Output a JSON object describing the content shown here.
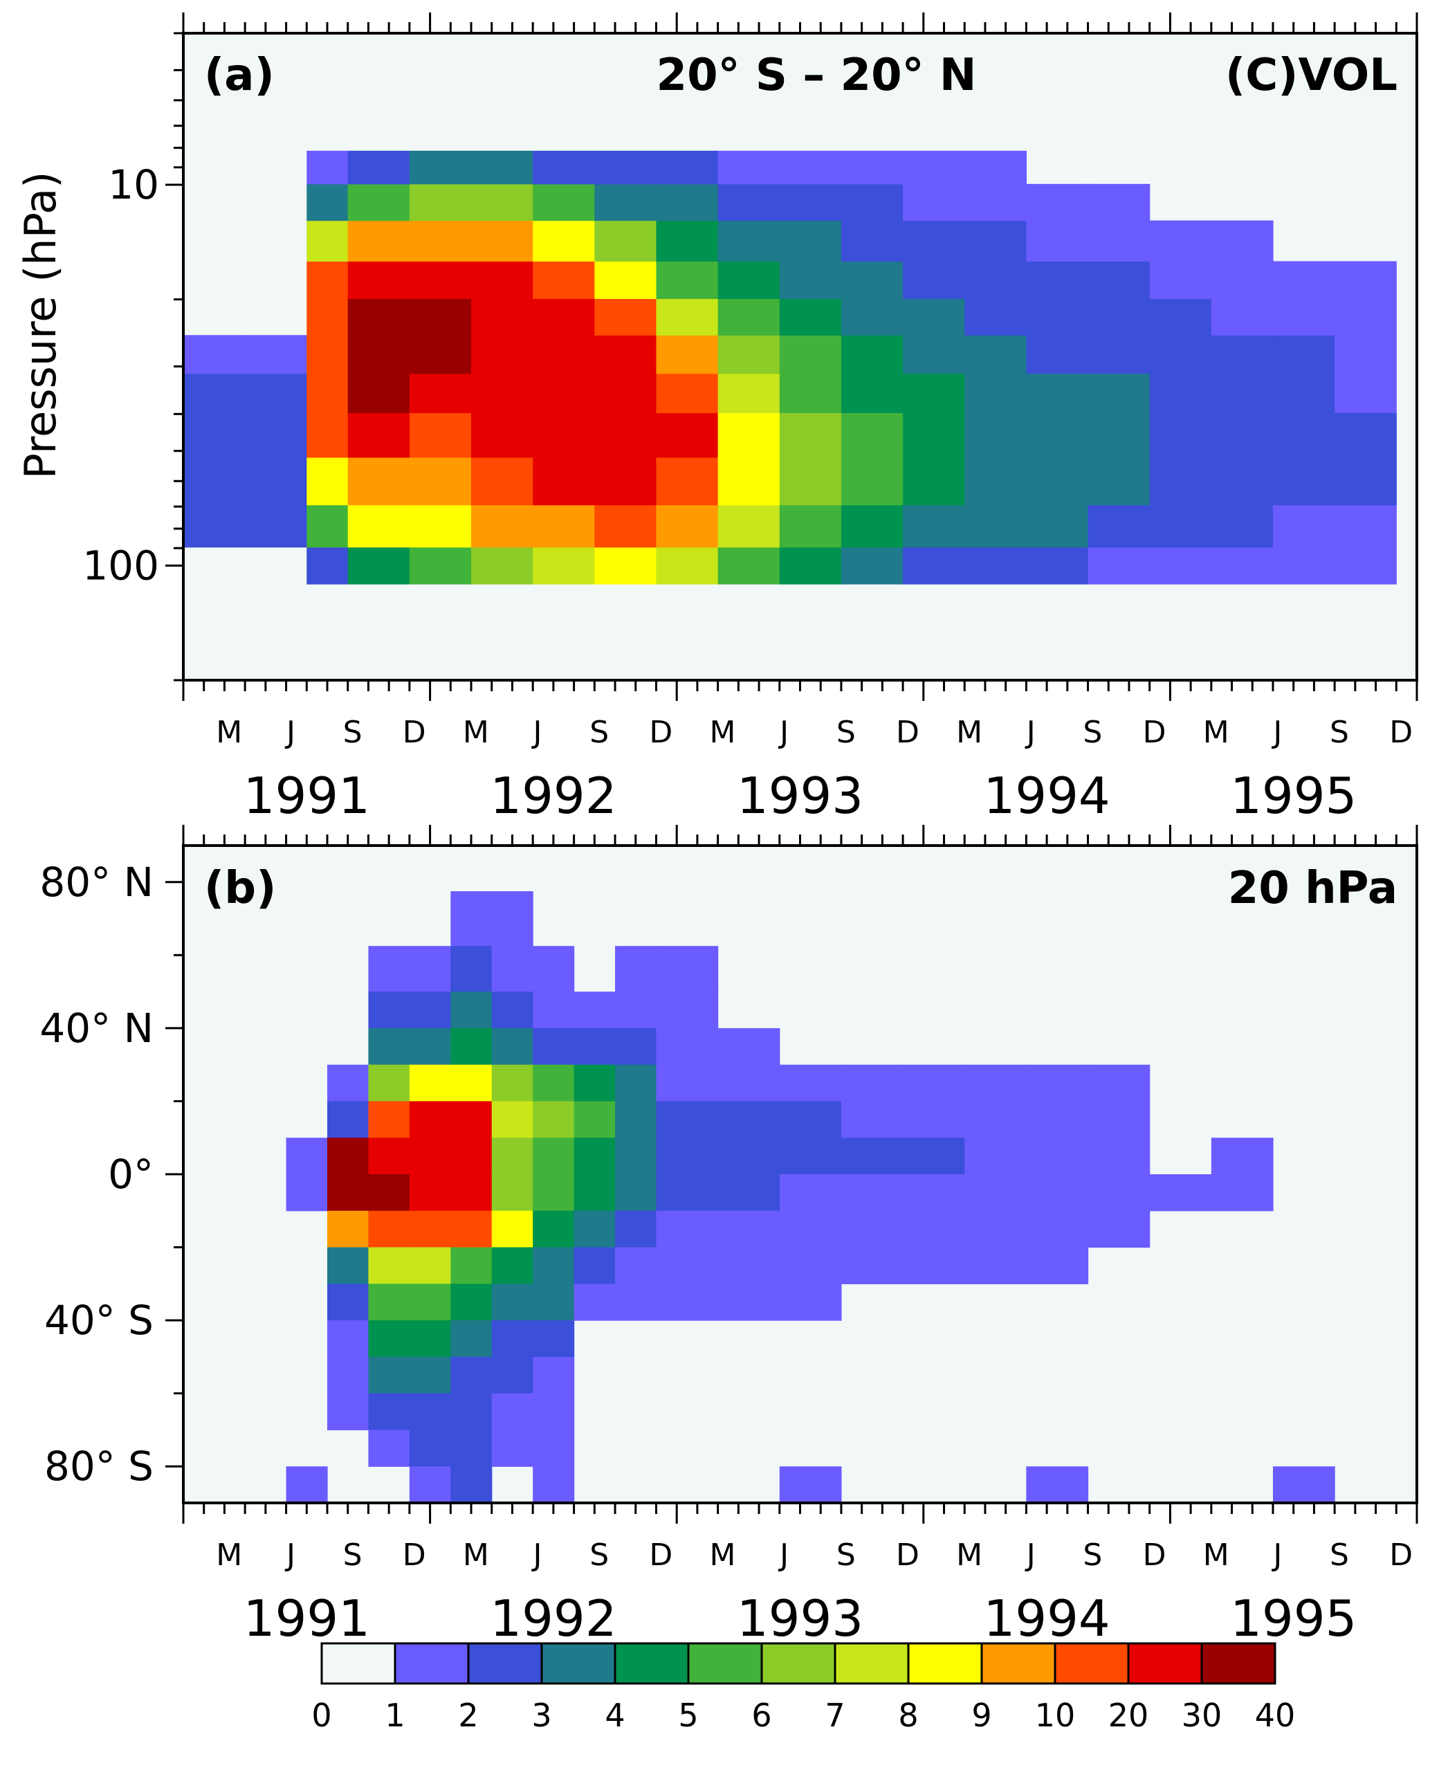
{
  "chart_data": [
    {
      "type": "heatmap",
      "panel": "(a)",
      "title": "20° S – 20° N",
      "title_right": "(C)VOL",
      "ylabel": "Pressure (hPa)",
      "y_scale": "log",
      "ylim": [
        200,
        4
      ],
      "y_ticks": [
        {
          "value": 10,
          "label": "10"
        },
        {
          "value": 100,
          "label": "100"
        }
      ],
      "x_start": "1991-01",
      "x_end": "1995-12",
      "x_month_ticks": [
        "M",
        "J",
        "S",
        "D",
        "M",
        "J",
        "S",
        "D",
        "M",
        "J",
        "S",
        "D",
        "M",
        "J",
        "S",
        "D",
        "M",
        "J",
        "S",
        "D"
      ],
      "x_year_labels": [
        "1991",
        "1992",
        "1993",
        "1994",
        "1995"
      ],
      "y_levels": [
        100,
        80,
        60,
        45,
        35,
        28,
        22,
        18,
        14,
        11,
        9
      ],
      "columns": [
        {
          "x": "1991-01",
          "levels": [
            0,
            2,
            2,
            2,
            2,
            1,
            0,
            0,
            0,
            0,
            0
          ]
        },
        {
          "x": "1991-04",
          "levels": [
            0,
            2,
            2,
            2,
            2,
            1,
            0,
            0,
            0,
            0,
            0
          ]
        },
        {
          "x": "1991-07",
          "levels": [
            2,
            5,
            8,
            10,
            10,
            10,
            10,
            10,
            7,
            3,
            1
          ]
        },
        {
          "x": "1991-09",
          "levels": [
            4,
            8,
            9,
            11,
            12,
            12,
            12,
            11,
            9,
            5,
            2
          ]
        },
        {
          "x": "1991-12",
          "levels": [
            5,
            8,
            9,
            10,
            11,
            12,
            12,
            11,
            9,
            6,
            3
          ]
        },
        {
          "x": "1992-03",
          "levels": [
            6,
            9,
            10,
            11,
            11,
            11,
            11,
            11,
            9,
            6,
            3
          ]
        },
        {
          "x": "1992-06",
          "levels": [
            7,
            9,
            11,
            11,
            11,
            11,
            11,
            10,
            8,
            5,
            2
          ]
        },
        {
          "x": "1992-09",
          "levels": [
            8,
            10,
            11,
            11,
            11,
            11,
            10,
            8,
            6,
            3,
            2
          ]
        },
        {
          "x": "1992-12",
          "levels": [
            7,
            9,
            10,
            11,
            10,
            9,
            7,
            5,
            4,
            3,
            2
          ]
        },
        {
          "x": "1993-03",
          "levels": [
            5,
            7,
            8,
            8,
            7,
            6,
            5,
            4,
            3,
            2,
            1
          ]
        },
        {
          "x": "1993-06",
          "levels": [
            4,
            5,
            6,
            6,
            5,
            5,
            4,
            3,
            3,
            2,
            1
          ]
        },
        {
          "x": "1993-09",
          "levels": [
            3,
            4,
            5,
            5,
            4,
            4,
            3,
            3,
            2,
            2,
            1
          ]
        },
        {
          "x": "1993-12",
          "levels": [
            2,
            3,
            4,
            4,
            4,
            3,
            3,
            2,
            2,
            1,
            1
          ]
        },
        {
          "x": "1994-03",
          "levels": [
            2,
            3,
            3,
            3,
            3,
            3,
            2,
            2,
            2,
            1,
            1
          ]
        },
        {
          "x": "1994-06",
          "levels": [
            2,
            3,
            3,
            3,
            3,
            2,
            2,
            2,
            1,
            1,
            0
          ]
        },
        {
          "x": "1994-09",
          "levels": [
            1,
            2,
            3,
            3,
            3,
            2,
            2,
            2,
            1,
            1,
            0
          ]
        },
        {
          "x": "1994-12",
          "levels": [
            1,
            2,
            2,
            2,
            2,
            2,
            2,
            1,
            1,
            0,
            0
          ]
        },
        {
          "x": "1995-03",
          "levels": [
            1,
            2,
            2,
            2,
            2,
            2,
            1,
            1,
            1,
            0,
            0
          ]
        },
        {
          "x": "1995-06",
          "levels": [
            1,
            1,
            2,
            2,
            2,
            2,
            1,
            1,
            0,
            0,
            0
          ]
        },
        {
          "x": "1995-09",
          "levels": [
            1,
            1,
            2,
            2,
            1,
            1,
            1,
            1,
            0,
            0,
            0
          ]
        }
      ]
    },
    {
      "type": "heatmap",
      "panel": "(b)",
      "title_right": "20 hPa",
      "ylabel": "",
      "ylim": [
        -90,
        90
      ],
      "y_ticks": [
        {
          "value": 80,
          "label": "80° N"
        },
        {
          "value": 40,
          "label": "40° N"
        },
        {
          "value": 0,
          "label": "0°"
        },
        {
          "value": -40,
          "label": "40° S"
        },
        {
          "value": -80,
          "label": "80° S"
        }
      ],
      "x_start": "1991-01",
      "x_end": "1995-12",
      "x_month_ticks": [
        "M",
        "J",
        "S",
        "D",
        "M",
        "J",
        "S",
        "D",
        "M",
        "J",
        "S",
        "D",
        "M",
        "J",
        "S",
        "D",
        "M",
        "J",
        "S",
        "D"
      ],
      "x_year_labels": [
        "1991",
        "1992",
        "1993",
        "1994",
        "1995"
      ],
      "y_levels": [
        70,
        55,
        45,
        35,
        25,
        15,
        5,
        -5,
        -15,
        -25,
        -35,
        -45,
        -55,
        -65,
        -75,
        -85
      ],
      "columns": [
        {
          "x": "1991-06",
          "levels": [
            0,
            0,
            0,
            0,
            0,
            0,
            1,
            1,
            0,
            0,
            0,
            0,
            0,
            0,
            0,
            1
          ]
        },
        {
          "x": "1991-08",
          "levels": [
            0,
            0,
            0,
            0,
            1,
            2,
            12,
            12,
            9,
            3,
            2,
            1,
            1,
            1,
            0,
            0
          ]
        },
        {
          "x": "1991-10",
          "levels": [
            0,
            1,
            2,
            3,
            6,
            10,
            11,
            12,
            10,
            7,
            5,
            4,
            3,
            2,
            1,
            0
          ]
        },
        {
          "x": "1991-12",
          "levels": [
            0,
            1,
            2,
            3,
            8,
            11,
            11,
            11,
            10,
            7,
            5,
            4,
            3,
            2,
            2,
            1
          ]
        },
        {
          "x": "1992-02",
          "levels": [
            1,
            2,
            3,
            4,
            8,
            11,
            11,
            11,
            10,
            5,
            4,
            3,
            2,
            2,
            2,
            2
          ]
        },
        {
          "x": "1992-04",
          "levels": [
            1,
            1,
            2,
            3,
            6,
            7,
            6,
            6,
            8,
            4,
            3,
            2,
            2,
            1,
            1,
            0
          ]
        },
        {
          "x": "1992-06",
          "levels": [
            0,
            1,
            1,
            2,
            5,
            6,
            5,
            5,
            4,
            3,
            3,
            2,
            1,
            1,
            1,
            1
          ]
        },
        {
          "x": "1992-08",
          "levels": [
            0,
            0,
            1,
            2,
            4,
            5,
            4,
            4,
            3,
            2,
            1,
            0,
            0,
            0,
            0,
            0
          ]
        },
        {
          "x": "1992-10",
          "levels": [
            0,
            1,
            1,
            2,
            3,
            3,
            3,
            3,
            2,
            1,
            1,
            0,
            0,
            0,
            0,
            0
          ]
        },
        {
          "x": "1992-12",
          "levels": [
            0,
            1,
            1,
            1,
            1,
            2,
            2,
            2,
            1,
            1,
            1,
            0,
            0,
            0,
            0,
            0
          ]
        },
        {
          "x": "1993-03",
          "levels": [
            0,
            0,
            0,
            1,
            1,
            2,
            2,
            2,
            1,
            1,
            1,
            0,
            0,
            0,
            0,
            0
          ]
        },
        {
          "x": "1993-06",
          "levels": [
            0,
            0,
            0,
            0,
            1,
            2,
            2,
            1,
            1,
            1,
            1,
            0,
            0,
            0,
            0,
            1
          ]
        },
        {
          "x": "1993-09",
          "levels": [
            0,
            0,
            0,
            0,
            1,
            1,
            2,
            1,
            1,
            1,
            0,
            0,
            0,
            0,
            0,
            0
          ]
        },
        {
          "x": "1993-12",
          "levels": [
            0,
            0,
            0,
            0,
            1,
            1,
            2,
            1,
            1,
            1,
            0,
            0,
            0,
            0,
            0,
            0
          ]
        },
        {
          "x": "1994-03",
          "levels": [
            0,
            0,
            0,
            0,
            1,
            1,
            1,
            1,
            1,
            1,
            0,
            0,
            0,
            0,
            0,
            0
          ]
        },
        {
          "x": "1994-06",
          "levels": [
            0,
            0,
            0,
            0,
            1,
            1,
            1,
            1,
            1,
            1,
            0,
            0,
            0,
            0,
            0,
            1
          ]
        },
        {
          "x": "1994-09",
          "levels": [
            0,
            0,
            0,
            0,
            1,
            1,
            1,
            1,
            1,
            0,
            0,
            0,
            0,
            0,
            0,
            0
          ]
        },
        {
          "x": "1994-12",
          "levels": [
            0,
            0,
            0,
            0,
            0,
            0,
            0,
            1,
            0,
            0,
            0,
            0,
            0,
            0,
            0,
            0
          ]
        },
        {
          "x": "1995-03",
          "levels": [
            0,
            0,
            0,
            0,
            0,
            0,
            1,
            1,
            0,
            0,
            0,
            0,
            0,
            0,
            0,
            0
          ]
        },
        {
          "x": "1995-06",
          "levels": [
            0,
            0,
            0,
            0,
            0,
            0,
            0,
            0,
            0,
            0,
            0,
            0,
            0,
            0,
            0,
            1
          ]
        }
      ]
    }
  ],
  "colorbar": {
    "colors": [
      "#f2f8f8",
      "#6a5cff",
      "#3b4fd8",
      "#1f7a8c",
      "#00924f",
      "#42b33a",
      "#8ccc28",
      "#c8e619",
      "#ffff00",
      "#ff9a00",
      "#ff4a00",
      "#e60000",
      "#990000"
    ],
    "labels": [
      "0",
      "1",
      "2",
      "3",
      "4",
      "5",
      "6",
      "7",
      "8",
      "9",
      "10",
      "20",
      "30",
      "40"
    ]
  }
}
